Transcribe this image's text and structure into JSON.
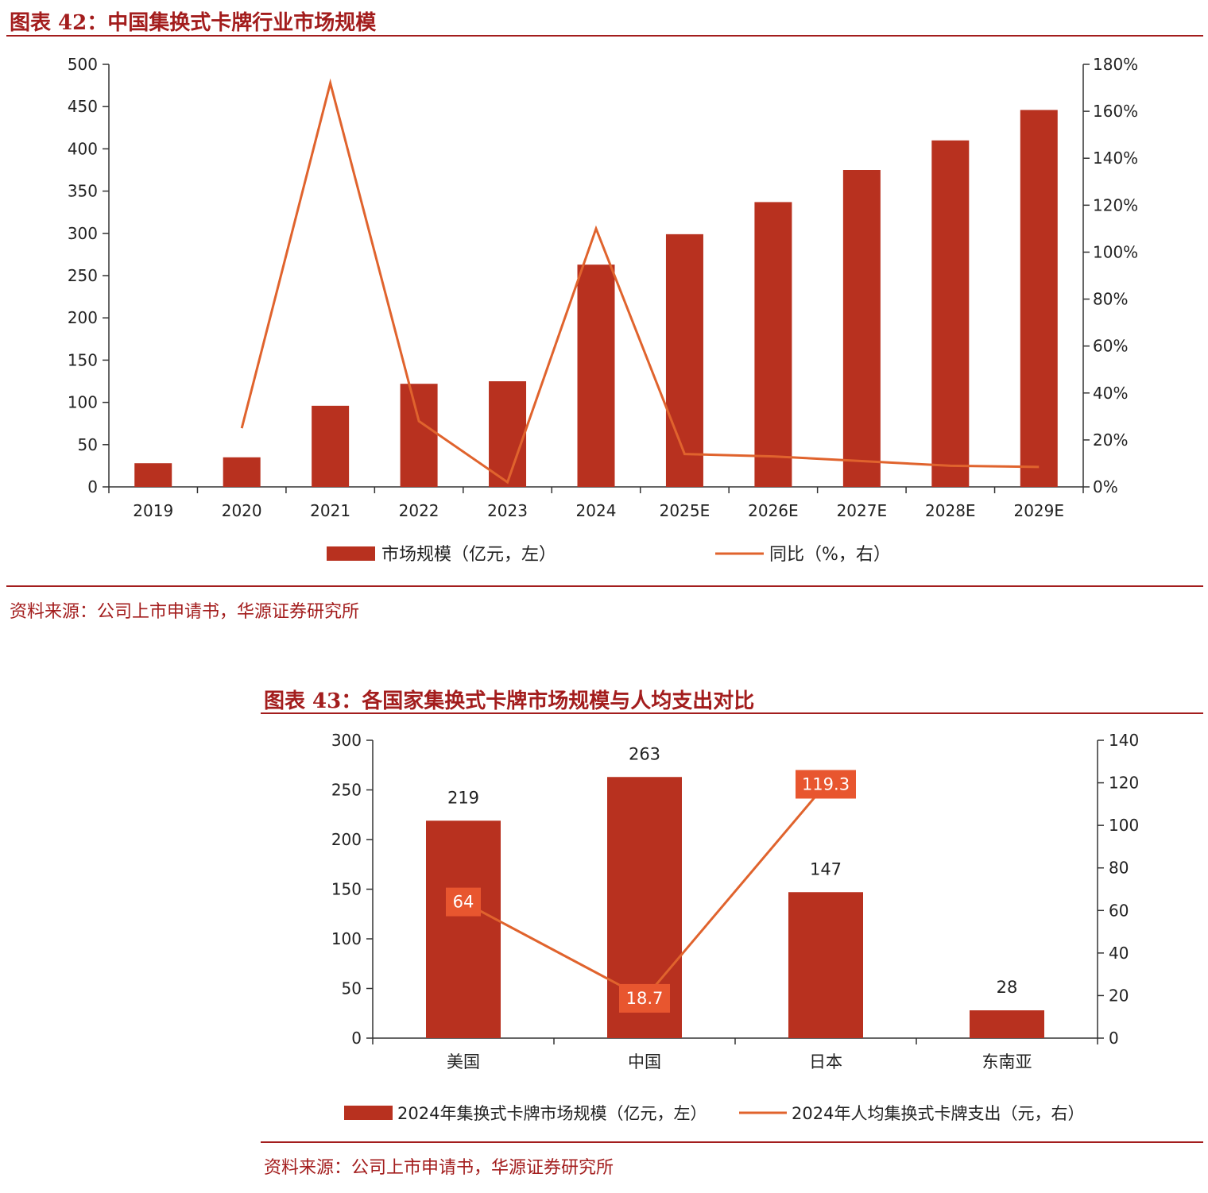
{
  "fig42": {
    "title": "图表 42：中国集换式卡牌行业市场规模",
    "source": "资料来源：公司上市申请书，华源证券研究所",
    "colors": {
      "bar": "#b8311f",
      "line": "#e0632d",
      "accent": "#a31d1d"
    },
    "chart_data": {
      "type": "bar",
      "categories": [
        "2019",
        "2020",
        "2021",
        "2022",
        "2023",
        "2024",
        "2025E",
        "2026E",
        "2027E",
        "2028E",
        "2029E"
      ],
      "series": [
        {
          "name": "市场规模（亿元，左）",
          "axis": "left",
          "type": "bar",
          "values": [
            28,
            35,
            96,
            122,
            125,
            263,
            299,
            337,
            375,
            410,
            446
          ]
        },
        {
          "name": "同比（%，右）",
          "axis": "right",
          "type": "line",
          "values": [
            null,
            25,
            172,
            28,
            2,
            110,
            14,
            13,
            11,
            9,
            8.5
          ]
        }
      ],
      "y_left": {
        "min": 0,
        "max": 500,
        "step": 50
      },
      "y_right": {
        "min": 0,
        "max": 180,
        "step": 20,
        "format": "percent"
      },
      "legend_position": "bottom"
    }
  },
  "fig43": {
    "title": "图表 43：各国家集换式卡牌市场规模与人均支出对比",
    "source": "资料来源：公司上市申请书，华源证券研究所",
    "colors": {
      "bar": "#b8311f",
      "line": "#e0632d",
      "label_box": "#e8562f"
    },
    "chart_data": {
      "type": "bar",
      "categories": [
        "美国",
        "中国",
        "日本",
        "东南亚"
      ],
      "series": [
        {
          "name": "2024年集换式卡牌市场规模（亿元，左）",
          "axis": "left",
          "type": "bar",
          "values": [
            219,
            263,
            147,
            28
          ],
          "labels": [
            "219",
            "263",
            "147",
            "28"
          ]
        },
        {
          "name": "2024年人均集换式卡牌支出（元，右）",
          "axis": "right",
          "type": "line",
          "values": [
            64,
            18.7,
            119.3,
            null
          ],
          "labels": [
            "64",
            "18.7",
            "119.3",
            ""
          ]
        }
      ],
      "y_left": {
        "min": 0,
        "max": 300,
        "step": 50
      },
      "y_right": {
        "min": 0,
        "max": 140,
        "step": 20
      },
      "legend_position": "bottom"
    }
  }
}
